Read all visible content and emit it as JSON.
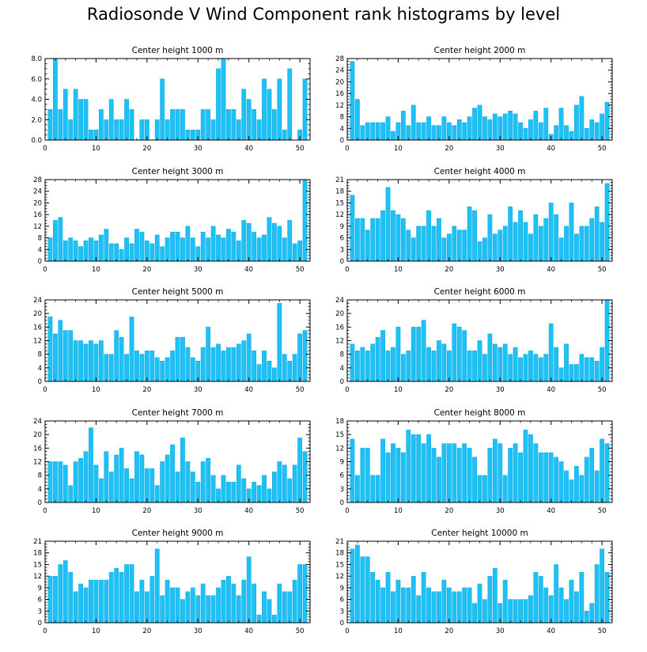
{
  "title": "Radiosonde V Wind Component rank histograms by level",
  "colors": {
    "bar": "#1ec1f5",
    "bar_edge": "#0aa8dd",
    "axis": "#000000"
  },
  "chart_data": [
    {
      "type": "bar",
      "title": "Center height 1000 m",
      "ylim": [
        0,
        8
      ],
      "yticks": [
        "0.0",
        "2.0",
        "4.0",
        "6.0",
        "8.0"
      ],
      "xlim": [
        0,
        52
      ],
      "xticks": [
        0,
        10,
        20,
        30,
        40,
        50
      ],
      "x": [
        1,
        2,
        3,
        4,
        5,
        6,
        7,
        8,
        9,
        10,
        11,
        12,
        13,
        14,
        15,
        16,
        17,
        18,
        19,
        20,
        21,
        22,
        23,
        24,
        25,
        26,
        27,
        28,
        29,
        30,
        31,
        32,
        33,
        34,
        35,
        36,
        37,
        38,
        39,
        40,
        41,
        42,
        43,
        44,
        45,
        46,
        47,
        48,
        49,
        50,
        51
      ],
      "values": [
        3,
        8,
        3,
        5,
        2,
        5,
        4,
        4,
        1,
        1,
        3,
        2,
        4,
        2,
        2,
        4,
        3,
        0,
        2,
        2,
        0,
        2,
        6,
        2,
        3,
        3,
        3,
        1,
        1,
        1,
        3,
        3,
        2,
        7,
        8,
        3,
        3,
        2,
        5,
        4,
        3,
        2,
        6,
        5,
        3,
        6,
        1,
        7,
        0,
        1,
        6
      ]
    },
    {
      "type": "bar",
      "title": "Center height 2000 m",
      "ylim": [
        0,
        28
      ],
      "yticks": [
        "0",
        "4",
        "8",
        "12",
        "16",
        "20",
        "24",
        "28"
      ],
      "xlim": [
        0,
        52
      ],
      "xticks": [
        0,
        10,
        20,
        30,
        40,
        50
      ],
      "x": [
        1,
        2,
        3,
        4,
        5,
        6,
        7,
        8,
        9,
        10,
        11,
        12,
        13,
        14,
        15,
        16,
        17,
        18,
        19,
        20,
        21,
        22,
        23,
        24,
        25,
        26,
        27,
        28,
        29,
        30,
        31,
        32,
        33,
        34,
        35,
        36,
        37,
        38,
        39,
        40,
        41,
        42,
        43,
        44,
        45,
        46,
        47,
        48,
        49,
        50,
        51
      ],
      "values": [
        27,
        14,
        5,
        6,
        6,
        6,
        6,
        8,
        3,
        6,
        10,
        5,
        12,
        6,
        6,
        8,
        5,
        5,
        8,
        6,
        5,
        7,
        6,
        8,
        11,
        12,
        8,
        7,
        9,
        8,
        9,
        10,
        9,
        6,
        4,
        7,
        10,
        6,
        11,
        2,
        5,
        11,
        5,
        3,
        12,
        15,
        4,
        7,
        6,
        9,
        13
      ]
    },
    {
      "type": "bar",
      "title": "Center height 3000 m",
      "ylim": [
        0,
        28
      ],
      "yticks": [
        "0",
        "4",
        "8",
        "12",
        "16",
        "20",
        "24",
        "28"
      ],
      "xlim": [
        0,
        52
      ],
      "xticks": [
        0,
        10,
        20,
        30,
        40,
        50
      ],
      "x": [
        1,
        2,
        3,
        4,
        5,
        6,
        7,
        8,
        9,
        10,
        11,
        12,
        13,
        14,
        15,
        16,
        17,
        18,
        19,
        20,
        21,
        22,
        23,
        24,
        25,
        26,
        27,
        28,
        29,
        30,
        31,
        32,
        33,
        34,
        35,
        36,
        37,
        38,
        39,
        40,
        41,
        42,
        43,
        44,
        45,
        46,
        47,
        48,
        49,
        50,
        51
      ],
      "values": [
        8,
        14,
        15,
        7,
        8,
        7,
        5,
        7,
        8,
        7,
        9,
        11,
        6,
        6,
        4,
        8,
        6,
        11,
        10,
        7,
        6,
        9,
        5,
        8,
        10,
        10,
        8,
        12,
        8,
        5,
        10,
        8,
        12,
        9,
        8,
        11,
        10,
        7,
        14,
        13,
        10,
        8,
        9,
        15,
        13,
        12,
        8,
        14,
        6,
        7,
        28
      ]
    },
    {
      "type": "bar",
      "title": "Center height 4000 m",
      "ylim": [
        0,
        21
      ],
      "yticks": [
        "0",
        "3",
        "6",
        "9",
        "12",
        "15",
        "18",
        "21"
      ],
      "xlim": [
        0,
        52
      ],
      "xticks": [
        0,
        10,
        20,
        30,
        40,
        50
      ],
      "x": [
        1,
        2,
        3,
        4,
        5,
        6,
        7,
        8,
        9,
        10,
        11,
        12,
        13,
        14,
        15,
        16,
        17,
        18,
        19,
        20,
        21,
        22,
        23,
        24,
        25,
        26,
        27,
        28,
        29,
        30,
        31,
        32,
        33,
        34,
        35,
        36,
        37,
        38,
        39,
        40,
        41,
        42,
        43,
        44,
        45,
        46,
        47,
        48,
        49,
        50,
        51
      ],
      "values": [
        17,
        11,
        11,
        8,
        11,
        11,
        13,
        19,
        13,
        12,
        11,
        8,
        6,
        9,
        9,
        13,
        9,
        11,
        6,
        7,
        9,
        8,
        8,
        14,
        13,
        5,
        6,
        12,
        7,
        8,
        9,
        14,
        10,
        13,
        10,
        7,
        12,
        9,
        11,
        15,
        12,
        6,
        9,
        15,
        7,
        9,
        9,
        11,
        14,
        10,
        20
      ]
    },
    {
      "type": "bar",
      "title": "Center height 5000 m",
      "ylim": [
        0,
        24
      ],
      "yticks": [
        "0",
        "4",
        "8",
        "12",
        "16",
        "20",
        "24"
      ],
      "xlim": [
        0,
        52
      ],
      "xticks": [
        0,
        10,
        20,
        30,
        40,
        50
      ],
      "x": [
        1,
        2,
        3,
        4,
        5,
        6,
        7,
        8,
        9,
        10,
        11,
        12,
        13,
        14,
        15,
        16,
        17,
        18,
        19,
        20,
        21,
        22,
        23,
        24,
        25,
        26,
        27,
        28,
        29,
        30,
        31,
        32,
        33,
        34,
        35,
        36,
        37,
        38,
        39,
        40,
        41,
        42,
        43,
        44,
        45,
        46,
        47,
        48,
        49,
        50,
        51
      ],
      "values": [
        19,
        14,
        18,
        15,
        15,
        12,
        12,
        11,
        12,
        11,
        12,
        8,
        8,
        15,
        13,
        8,
        19,
        9,
        8,
        9,
        9,
        7,
        6,
        7,
        9,
        13,
        13,
        10,
        7,
        6,
        10,
        16,
        10,
        11,
        9,
        10,
        10,
        11,
        12,
        14,
        9,
        5,
        9,
        6,
        4,
        23,
        8,
        6,
        8,
        14,
        15
      ]
    },
    {
      "type": "bar",
      "title": "Center height 6000 m",
      "ylim": [
        0,
        24
      ],
      "yticks": [
        "0",
        "4",
        "8",
        "12",
        "16",
        "20",
        "24"
      ],
      "xlim": [
        0,
        52
      ],
      "xticks": [
        0,
        10,
        20,
        30,
        40,
        50
      ],
      "x": [
        1,
        2,
        3,
        4,
        5,
        6,
        7,
        8,
        9,
        10,
        11,
        12,
        13,
        14,
        15,
        16,
        17,
        18,
        19,
        20,
        21,
        22,
        23,
        24,
        25,
        26,
        27,
        28,
        29,
        30,
        31,
        32,
        33,
        34,
        35,
        36,
        37,
        38,
        39,
        40,
        41,
        42,
        43,
        44,
        45,
        46,
        47,
        48,
        49,
        50,
        51
      ],
      "values": [
        11,
        9,
        10,
        9,
        11,
        13,
        15,
        9,
        10,
        16,
        8,
        9,
        16,
        16,
        18,
        10,
        9,
        12,
        11,
        9,
        17,
        16,
        15,
        9,
        9,
        12,
        8,
        14,
        11,
        10,
        11,
        8,
        10,
        7,
        8,
        9,
        8,
        7,
        8,
        17,
        10,
        4,
        11,
        5,
        5,
        8,
        7,
        7,
        6,
        10,
        24
      ]
    },
    {
      "type": "bar",
      "title": "Center height 7000 m",
      "ylim": [
        0,
        24
      ],
      "yticks": [
        "0",
        "4",
        "8",
        "12",
        "16",
        "20",
        "24"
      ],
      "xlim": [
        0,
        52
      ],
      "xticks": [
        0,
        10,
        20,
        30,
        40,
        50
      ],
      "x": [
        1,
        2,
        3,
        4,
        5,
        6,
        7,
        8,
        9,
        10,
        11,
        12,
        13,
        14,
        15,
        16,
        17,
        18,
        19,
        20,
        21,
        22,
        23,
        24,
        25,
        26,
        27,
        28,
        29,
        30,
        31,
        32,
        33,
        34,
        35,
        36,
        37,
        38,
        39,
        40,
        41,
        42,
        43,
        44,
        45,
        46,
        47,
        48,
        49,
        50,
        51
      ],
      "values": [
        12,
        12,
        12,
        11,
        5,
        12,
        13,
        15,
        22,
        11,
        7,
        15,
        9,
        14,
        16,
        10,
        7,
        15,
        14,
        10,
        10,
        5,
        12,
        14,
        17,
        9,
        19,
        12,
        9,
        6,
        12,
        13,
        8,
        4,
        8,
        6,
        6,
        11,
        7,
        4,
        6,
        5,
        8,
        4,
        9,
        12,
        11,
        7,
        11,
        19,
        15
      ]
    },
    {
      "type": "bar",
      "title": "Center height 8000 m",
      "ylim": [
        0,
        18
      ],
      "yticks": [
        "0",
        "3",
        "6",
        "9",
        "12",
        "15",
        "18"
      ],
      "xlim": [
        0,
        52
      ],
      "xticks": [
        0,
        10,
        20,
        30,
        40,
        50
      ],
      "x": [
        1,
        2,
        3,
        4,
        5,
        6,
        7,
        8,
        9,
        10,
        11,
        12,
        13,
        14,
        15,
        16,
        17,
        18,
        19,
        20,
        21,
        22,
        23,
        24,
        25,
        26,
        27,
        28,
        29,
        30,
        31,
        32,
        33,
        34,
        35,
        36,
        37,
        38,
        39,
        40,
        41,
        42,
        43,
        44,
        45,
        46,
        47,
        48,
        49,
        50,
        51
      ],
      "values": [
        14,
        6,
        12,
        12,
        6,
        6,
        14,
        11,
        13,
        12,
        11,
        16,
        15,
        15,
        13,
        15,
        12,
        10,
        13,
        13,
        13,
        12,
        13,
        12,
        10,
        6,
        6,
        12,
        14,
        13,
        6,
        12,
        13,
        11,
        16,
        15,
        13,
        11,
        11,
        11,
        10,
        9,
        7,
        5,
        8,
        6,
        10,
        12,
        7,
        14,
        13
      ]
    },
    {
      "type": "bar",
      "title": "Center height 9000 m",
      "ylim": [
        0,
        21
      ],
      "yticks": [
        "0",
        "3",
        "6",
        "9",
        "12",
        "15",
        "18",
        "21"
      ],
      "xlim": [
        0,
        52
      ],
      "xticks": [
        0,
        10,
        20,
        30,
        40,
        50
      ],
      "x": [
        1,
        2,
        3,
        4,
        5,
        6,
        7,
        8,
        9,
        10,
        11,
        12,
        13,
        14,
        15,
        16,
        17,
        18,
        19,
        20,
        21,
        22,
        23,
        24,
        25,
        26,
        27,
        28,
        29,
        30,
        31,
        32,
        33,
        34,
        35,
        36,
        37,
        38,
        39,
        40,
        41,
        42,
        43,
        44,
        45,
        46,
        47,
        48,
        49,
        50,
        51
      ],
      "values": [
        12,
        12,
        15,
        16,
        13,
        8,
        10,
        9,
        11,
        11,
        11,
        11,
        13,
        14,
        13,
        15,
        15,
        8,
        11,
        8,
        12,
        19,
        7,
        11,
        9,
        9,
        6,
        8,
        9,
        7,
        10,
        7,
        7,
        9,
        11,
        12,
        10,
        7,
        11,
        17,
        10,
        2,
        8,
        6,
        2,
        10,
        8,
        8,
        11,
        15,
        15
      ]
    },
    {
      "type": "bar",
      "title": "Center height 10000 m",
      "ylim": [
        0,
        21
      ],
      "yticks": [
        "0",
        "3",
        "6",
        "9",
        "12",
        "15",
        "18",
        "21"
      ],
      "xlim": [
        0,
        52
      ],
      "xticks": [
        0,
        10,
        20,
        30,
        40,
        50
      ],
      "x": [
        1,
        2,
        3,
        4,
        5,
        6,
        7,
        8,
        9,
        10,
        11,
        12,
        13,
        14,
        15,
        16,
        17,
        18,
        19,
        20,
        21,
        22,
        23,
        24,
        25,
        26,
        27,
        28,
        29,
        30,
        31,
        32,
        33,
        34,
        35,
        36,
        37,
        38,
        39,
        40,
        41,
        42,
        43,
        44,
        45,
        46,
        47,
        48,
        49,
        50,
        51
      ],
      "values": [
        19,
        20,
        17,
        17,
        13,
        11,
        9,
        13,
        8,
        11,
        9,
        9,
        12,
        7,
        13,
        9,
        8,
        8,
        11,
        9,
        8,
        8,
        9,
        9,
        5,
        10,
        6,
        12,
        14,
        5,
        11,
        6,
        6,
        6,
        6,
        7,
        13,
        12,
        9,
        7,
        15,
        9,
        6,
        11,
        8,
        13,
        3,
        5,
        15,
        19,
        13
      ]
    }
  ]
}
